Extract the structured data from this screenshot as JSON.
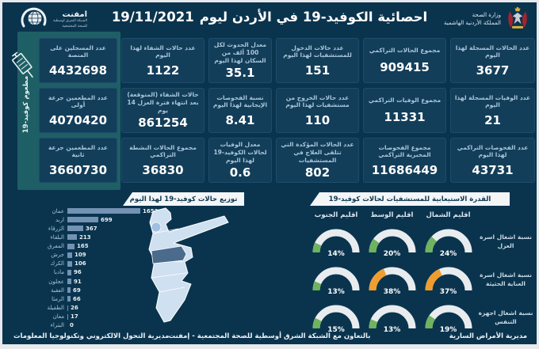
{
  "header": {
    "title": "احصائية الكوفيد-19 في الأردن ليوم",
    "date": "19/11/2021",
    "ministry_line1": "وزارة الصحة",
    "ministry_line2": "المملكة الأردنية الهاشمية",
    "emphnet_name": "امفنت",
    "emphnet_sub1": "الشبكة الشرق اوسطية",
    "emphnet_sub2": "للصحة المجتمعية"
  },
  "vaccination_panel": {
    "side_label": "مطعوم كوفيد-19",
    "boxes": [
      {
        "label": "عدد المسجلين على المنصة",
        "value": "4432698"
      },
      {
        "label": "عدد المطعمين جرعة أولى",
        "value": "4070420"
      },
      {
        "label": "عدد المطعمين جرعة ثانية",
        "value": "3660730"
      }
    ]
  },
  "stats_boxes": [
    {
      "label": "عدد الحالات المسجلة لهذا اليوم",
      "value": "3677"
    },
    {
      "label": "مجموع الحالات التراكمي",
      "value": "909415"
    },
    {
      "label": "عدد حالات الدخول للمستشفيات لهذا اليوم",
      "value": "151"
    },
    {
      "label": "معدل الحدوث لكل 100 ألف من السكان لهذا اليوم",
      "value": "35.1"
    },
    {
      "label": "عدد حالات الشفاء لهذا اليوم",
      "value": "1122"
    },
    {
      "label": "عدد الوفيات المسجلة لهذا اليوم",
      "value": "21"
    },
    {
      "label": "مجموع الوفيات التراكمي",
      "value": "11331"
    },
    {
      "label": "عدد حالات الخروج من مستشفيات لهذا اليوم",
      "value": "110"
    },
    {
      "label": "نسبة الفحوصات الإيجابية لهذا اليوم",
      "value": "8.41"
    },
    {
      "label": "حالات الشفاء (المتوقعة) بعد انتهاء فترة العزل 14 يوم",
      "value": "861254"
    },
    {
      "label": "عدد الفحوصات التراكمي لهذا اليوم",
      "value": "43731"
    },
    {
      "label": "مجموع الفحوصات المخبرية التراكمي",
      "value": "11686449"
    },
    {
      "label": "عدد الحالات المؤكدة التي تتلقى العلاج في المستشفيات",
      "value": "802"
    },
    {
      "label": "معدل الوفيات لحالات الكوفيد-19 لهذا اليوم",
      "value": "0.6"
    },
    {
      "label": "مجموع الحالات النشطة التراكمي",
      "value": "36830"
    }
  ],
  "chart_data": [
    {
      "type": "bar",
      "title": "توزيع حالات كوفيد-19 لهذا اليوم",
      "orientation": "horizontal",
      "categories": [
        "عمان",
        "اربد",
        "الزرقاء",
        "البلقاء",
        "المفرق",
        "جرش",
        "الكرك",
        "مادبا",
        "عجلون",
        "العقبة",
        "الرمثا",
        "الطفيلة",
        "معان",
        "البتراء"
      ],
      "values": [
        1653,
        699,
        367,
        213,
        165,
        109,
        106,
        96,
        91,
        69,
        66,
        26,
        17,
        0
      ],
      "xlabel": "",
      "ylabel": "",
      "xlim": [
        0,
        1800
      ],
      "grid": false,
      "data_labels": true
    },
    {
      "type": "gauge-grid",
      "title": "القدرة الاستيعابية للمستشفيات لحالات كوفيد-19",
      "columns": [
        "اقليم الشمال",
        "اقليم الوسط",
        "اقليم الجنوب"
      ],
      "rows": [
        {
          "label": "نسبة اشغال اسرة العزل",
          "values": [
            24,
            20,
            14
          ],
          "colors": [
            "green",
            "green",
            "green"
          ]
        },
        {
          "label": "نسبة اشغال اسرة العناية الحثيثة",
          "values": [
            37,
            38,
            13
          ],
          "colors": [
            "orange",
            "orange",
            "green"
          ]
        },
        {
          "label": "نسبة اشغال اجهزة التنفس",
          "values": [
            19,
            13,
            15
          ],
          "colors": [
            "green",
            "green",
            "green"
          ]
        }
      ],
      "unit": "%",
      "range": [
        0,
        100
      ]
    }
  ],
  "footer": {
    "right": "مديرية الأمراض السارية",
    "center": "بالتعاون مع الشبكة الشرق أوسطية للصحة المجتمعية - إمفنت",
    "left": "مديرية التحول الالكتروني وتكنولوجيا المعلومات"
  },
  "colors": {
    "bg": "#0a344e",
    "box": "#133e5a",
    "box_border": "#1d4c6b",
    "teal": "#1e5f66",
    "label": "#a9c6db",
    "bar": "#7392b4",
    "banner_bg": "#f3f5f7",
    "banner_text": "#0e3750",
    "gauge_track": "#e9ecef",
    "gauge_green": "#6fb35f",
    "gauge_orange": "#ef9d2f",
    "map_light": "#cfe0f0",
    "map_dark": "#4a6b8c",
    "map_mid": "#9fc0e0",
    "frame": "#e7e9ec"
  }
}
